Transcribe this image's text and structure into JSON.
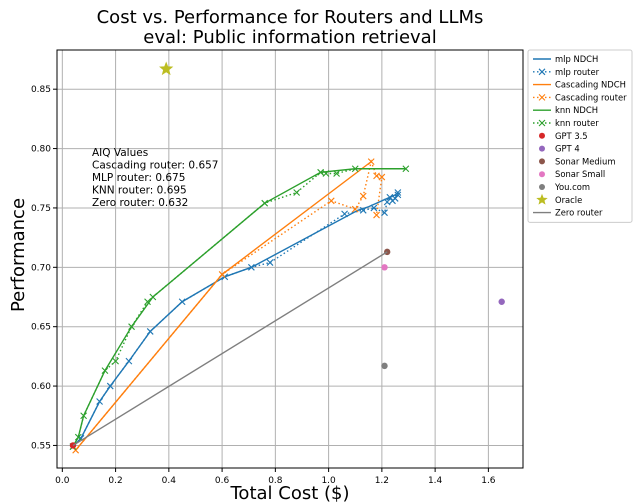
{
  "chart_data": {
    "type": "line",
    "title": "Cost vs. Performance for Routers and LLMs",
    "subtitle": "eval: Public information retrieval",
    "xlabel": "Total Cost ($)",
    "ylabel": "Performance",
    "xlim": [
      -0.02,
      1.73
    ],
    "ylim": [
      0.531,
      0.883
    ],
    "xticks": [
      0.0,
      0.2,
      0.4,
      0.6,
      0.8,
      1.0,
      1.2,
      1.4,
      1.6
    ],
    "xtick_labels": [
      "0.0",
      "0.2",
      "0.4",
      "0.6",
      "0.8",
      "1.0",
      "1.2",
      "1.4",
      "1.6"
    ],
    "yticks": [
      0.55,
      0.6,
      0.65,
      0.7,
      0.75,
      0.8,
      0.85
    ],
    "ytick_labels": [
      "0.55",
      "0.60",
      "0.65",
      "0.70",
      "0.75",
      "0.80",
      "0.85"
    ],
    "grid": true,
    "legend_position": "outside-right",
    "annotation": {
      "lines": [
        "AIQ Values",
        "Cascading router: 0.657",
        "MLP router: 0.675",
        "KNN router: 0.695",
        "Zero router: 0.632"
      ]
    },
    "series": [
      {
        "name": "mlp NDCH",
        "kind": "line",
        "color": "#1f77b4",
        "x": [
          0.04,
          0.07,
          0.14,
          0.18,
          0.25,
          0.33,
          0.45,
          0.61,
          0.71,
          1.11,
          1.15,
          1.19,
          1.23,
          1.25,
          1.26
        ],
        "y": [
          0.549,
          0.556,
          0.587,
          0.6,
          0.621,
          0.646,
          0.671,
          0.692,
          0.7,
          0.748,
          0.751,
          0.755,
          0.759,
          0.761,
          0.763
        ]
      },
      {
        "name": "mlp router",
        "kind": "dotted-x",
        "color": "#1f77b4",
        "x": [
          0.04,
          0.07,
          0.14,
          0.18,
          0.25,
          0.33,
          0.45,
          0.61,
          0.71,
          0.78,
          1.06,
          1.13,
          1.17,
          1.21,
          1.22,
          1.23,
          1.26,
          1.26,
          1.25,
          1.24
        ],
        "y": [
          0.549,
          0.556,
          0.587,
          0.6,
          0.621,
          0.646,
          0.671,
          0.692,
          0.7,
          0.704,
          0.745,
          0.748,
          0.75,
          0.746,
          0.755,
          0.759,
          0.761,
          0.763,
          0.758,
          0.756
        ]
      },
      {
        "name": "Cascading NDCH",
        "kind": "line",
        "color": "#ff7f0e",
        "x": [
          0.05,
          0.6,
          1.16
        ],
        "y": [
          0.546,
          0.694,
          0.789
        ]
      },
      {
        "name": "Cascading router",
        "kind": "dotted-x",
        "color": "#ff7f0e",
        "x": [
          0.05,
          0.6,
          1.01,
          1.1,
          1.13,
          1.16,
          1.18,
          1.2,
          1.18
        ],
        "y": [
          0.546,
          0.694,
          0.756,
          0.749,
          0.76,
          0.789,
          0.777,
          0.776,
          0.744
        ]
      },
      {
        "name": "knn NDCH",
        "kind": "line",
        "color": "#2ca02c",
        "x": [
          0.04,
          0.06,
          0.08,
          0.16,
          0.26,
          0.34,
          0.76,
          0.97,
          1.1,
          1.29
        ],
        "y": [
          0.549,
          0.557,
          0.575,
          0.613,
          0.65,
          0.675,
          0.754,
          0.78,
          0.783,
          0.783
        ]
      },
      {
        "name": "knn router",
        "kind": "dotted-x",
        "color": "#2ca02c",
        "x": [
          0.04,
          0.06,
          0.08,
          0.16,
          0.2,
          0.26,
          0.32,
          0.34,
          0.76,
          0.88,
          0.97,
          0.99,
          1.03,
          1.1,
          1.29
        ],
        "y": [
          0.549,
          0.557,
          0.575,
          0.613,
          0.621,
          0.65,
          0.671,
          0.675,
          0.754,
          0.763,
          0.78,
          0.779,
          0.779,
          0.783,
          0.783
        ]
      },
      {
        "name": "GPT 3.5",
        "kind": "point",
        "color": "#d62728",
        "x": [
          0.04
        ],
        "y": [
          0.55
        ]
      },
      {
        "name": "GPT 4",
        "kind": "point",
        "color": "#9467bd",
        "x": [
          1.65
        ],
        "y": [
          0.671
        ]
      },
      {
        "name": "Sonar Medium",
        "kind": "point",
        "color": "#8c564b",
        "x": [
          1.22
        ],
        "y": [
          0.713
        ]
      },
      {
        "name": "Sonar Small",
        "kind": "point",
        "color": "#e377c2",
        "x": [
          1.21
        ],
        "y": [
          0.7
        ]
      },
      {
        "name": "You.com",
        "kind": "point",
        "color": "#7f7f7f",
        "x": [
          1.21
        ],
        "y": [
          0.617
        ]
      },
      {
        "name": "Oracle",
        "kind": "star",
        "color": "#bcbd22",
        "x": [
          0.39
        ],
        "y": [
          0.867
        ]
      },
      {
        "name": "Zero router",
        "kind": "line",
        "color": "#7f7f7f",
        "x": [
          0.04,
          1.22
        ],
        "y": [
          0.55,
          0.713
        ]
      }
    ]
  }
}
